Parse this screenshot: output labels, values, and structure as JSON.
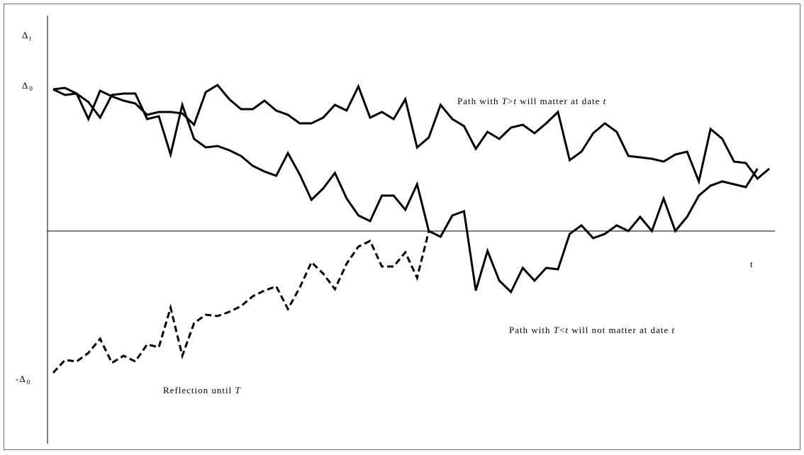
{
  "chart_data": {
    "type": "line",
    "y_axis_label": {
      "symbol": "Δ",
      "sub": "t"
    },
    "y_ticks": [
      {
        "text": "Δ",
        "sub": "0",
        "value": 1
      },
      {
        "text": "-Δ",
        "sub": "0",
        "value": -1
      }
    ],
    "xlabel": "t",
    "ylim": [
      -1.47,
      1.2
    ],
    "xlim": [
      0,
      61
    ],
    "zero_line": true,
    "grid": false,
    "annotations": {
      "upper": {
        "prefix": "Path with ",
        "italic1": "T",
        "mid": ">",
        "italic2": "t",
        "suffix": " will matter at date ",
        "italic3": "t"
      },
      "lower": {
        "prefix": "Path with ",
        "italic1": "T",
        "mid": "<",
        "italic2": "t",
        "suffix": " will not matter at date ",
        "italic3": "t"
      },
      "reflection": {
        "prefix": "Reflection until ",
        "italic1": "T"
      }
    },
    "series": [
      {
        "style": "solid",
        "points": [
          [
            0,
            1
          ],
          [
            1,
            1.01
          ],
          [
            2,
            0.97
          ],
          [
            3,
            0.79
          ],
          [
            4,
            0.99
          ],
          [
            5,
            0.95
          ],
          [
            6,
            0.92
          ],
          [
            7,
            0.9
          ],
          [
            8,
            0.82
          ],
          [
            9,
            0.84
          ],
          [
            10,
            0.84
          ],
          [
            11,
            0.83
          ],
          [
            12,
            0.75
          ],
          [
            13,
            0.98
          ],
          [
            14,
            1.03
          ],
          [
            15,
            0.93
          ],
          [
            16,
            0.86
          ],
          [
            17,
            0.86
          ],
          [
            18,
            0.92
          ],
          [
            19,
            0.85
          ],
          [
            20,
            0.82
          ],
          [
            21,
            0.76
          ],
          [
            22,
            0.76
          ],
          [
            23,
            0.8
          ],
          [
            24,
            0.89
          ],
          [
            25,
            0.85
          ],
          [
            26,
            1.02
          ],
          [
            27,
            0.8
          ],
          [
            28,
            0.84
          ],
          [
            29,
            0.79
          ],
          [
            30,
            0.93
          ],
          [
            31,
            0.59
          ],
          [
            32,
            0.66
          ],
          [
            33,
            0.89
          ],
          [
            34,
            0.79
          ],
          [
            35,
            0.74
          ],
          [
            36,
            0.58
          ],
          [
            37,
            0.7
          ],
          [
            38,
            0.65
          ],
          [
            39,
            0.73
          ],
          [
            40,
            0.75
          ],
          [
            41,
            0.69
          ],
          [
            42,
            0.76
          ],
          [
            43,
            0.84
          ],
          [
            44,
            0.5
          ],
          [
            45,
            0.56
          ],
          [
            46,
            0.69
          ],
          [
            47,
            0.76
          ],
          [
            48,
            0.7
          ],
          [
            49,
            0.53
          ],
          [
            50,
            0.52
          ],
          [
            51,
            0.51
          ],
          [
            52,
            0.49
          ],
          [
            53,
            0.54
          ],
          [
            54,
            0.56
          ],
          [
            55,
            0.35
          ],
          [
            56,
            0.72
          ],
          [
            57,
            0.65
          ],
          [
            58,
            0.49
          ],
          [
            59,
            0.48
          ],
          [
            60,
            0.37
          ],
          [
            61,
            0.44
          ]
        ]
      },
      {
        "style": "solid",
        "points": [
          [
            0,
            1
          ],
          [
            1,
            0.96
          ],
          [
            2,
            0.97
          ],
          [
            3,
            0.91
          ],
          [
            4,
            0.8
          ],
          [
            5,
            0.96
          ],
          [
            6,
            0.97
          ],
          [
            7,
            0.97
          ],
          [
            8,
            0.79
          ],
          [
            9,
            0.81
          ],
          [
            10,
            0.54
          ],
          [
            11,
            0.89
          ],
          [
            12,
            0.65
          ],
          [
            13,
            0.59
          ],
          [
            14,
            0.6
          ],
          [
            15,
            0.57
          ],
          [
            16,
            0.53
          ],
          [
            17,
            0.46
          ],
          [
            18,
            0.42
          ],
          [
            19,
            0.39
          ],
          [
            20,
            0.55
          ],
          [
            21,
            0.4
          ],
          [
            22,
            0.22
          ],
          [
            23,
            0.3
          ],
          [
            24,
            0.41
          ],
          [
            25,
            0.23
          ],
          [
            26,
            0.11
          ],
          [
            27,
            0.07
          ],
          [
            28,
            0.25
          ],
          [
            29,
            0.25
          ],
          [
            30,
            0.15
          ],
          [
            31,
            0.33
          ],
          [
            32,
            0.0
          ],
          [
            33,
            -0.04
          ],
          [
            34,
            0.11
          ],
          [
            35,
            0.14
          ],
          [
            36,
            -0.42
          ],
          [
            37,
            -0.14
          ],
          [
            38,
            -0.35
          ],
          [
            39,
            -0.43
          ],
          [
            40,
            -0.26
          ],
          [
            41,
            -0.35
          ],
          [
            42,
            -0.26
          ],
          [
            43,
            -0.27
          ],
          [
            44,
            -0.02
          ],
          [
            45,
            0.04
          ],
          [
            46,
            -0.05
          ],
          [
            47,
            -0.02
          ],
          [
            48,
            0.04
          ],
          [
            49,
            0.0
          ],
          [
            50,
            0.1
          ],
          [
            51,
            0.0
          ],
          [
            52,
            0.23
          ],
          [
            53,
            0.0
          ],
          [
            54,
            0.1
          ],
          [
            55,
            0.25
          ],
          [
            56,
            0.32
          ],
          [
            57,
            0.35
          ],
          [
            58,
            0.33
          ],
          [
            59,
            0.31
          ],
          [
            60,
            0.44
          ]
        ]
      },
      {
        "style": "dashed",
        "points": [
          [
            0,
            -1
          ],
          [
            1,
            -0.91
          ],
          [
            2,
            -0.92
          ],
          [
            3,
            -0.86
          ],
          [
            4,
            -0.76
          ],
          [
            5,
            -0.93
          ],
          [
            6,
            -0.88
          ],
          [
            7,
            -0.92
          ],
          [
            8,
            -0.8
          ],
          [
            9,
            -0.82
          ],
          [
            10,
            -0.54
          ],
          [
            11,
            -0.88
          ],
          [
            12,
            -0.65
          ],
          [
            13,
            -0.59
          ],
          [
            14,
            -0.6
          ],
          [
            15,
            -0.57
          ],
          [
            16,
            -0.53
          ],
          [
            17,
            -0.46
          ],
          [
            18,
            -0.42
          ],
          [
            19,
            -0.39
          ],
          [
            20,
            -0.55
          ],
          [
            21,
            -0.4
          ],
          [
            22,
            -0.22
          ],
          [
            23,
            -0.3
          ],
          [
            24,
            -0.41
          ],
          [
            25,
            -0.23
          ],
          [
            26,
            -0.11
          ],
          [
            27,
            -0.07
          ],
          [
            28,
            -0.25
          ],
          [
            29,
            -0.25
          ],
          [
            30,
            -0.15
          ],
          [
            31,
            -0.33
          ],
          [
            32,
            0.0
          ]
        ]
      }
    ]
  }
}
